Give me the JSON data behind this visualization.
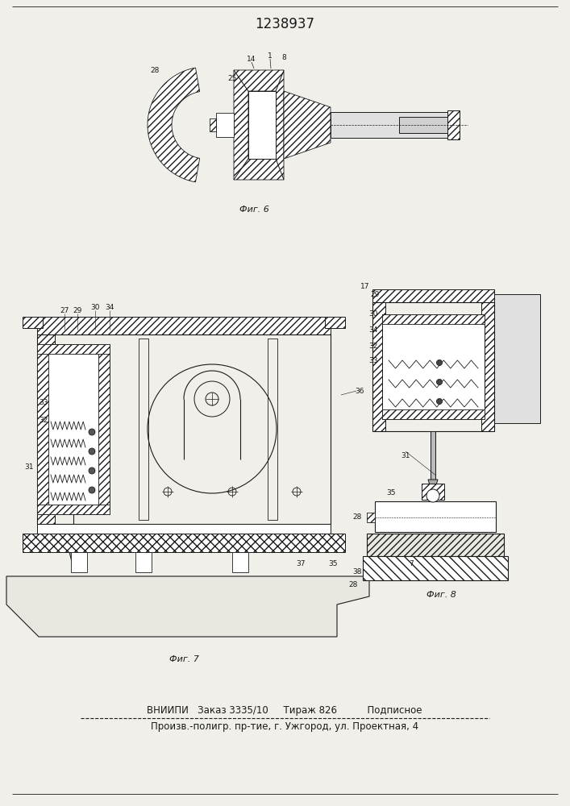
{
  "title": "1238937",
  "bg_color": "#f0efea",
  "footer_line1": "ВНИИПИ   Заказ 3335/10     Тираж 826          Подписное",
  "footer_line2": "Произв.-полигр. пр-тие, г. Ужгород, ул. Проектная, 4",
  "footer_fontsize": 8.5,
  "fig6_label": "Фиг. 6",
  "fig7_label": "Фиг. 7",
  "fig8_label": "Фиг. 8",
  "line_color": "#1a1a1a",
  "title_fontsize": 12
}
